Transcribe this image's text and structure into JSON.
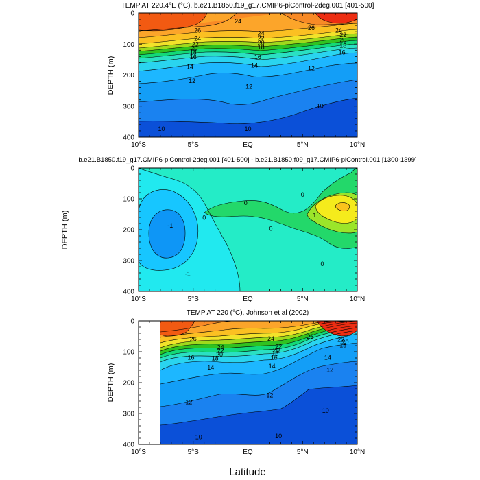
{
  "chart_data": [
    {
      "type": "contour",
      "title": "TEMP AT 220.4°E (°C), b.e21.B1850.f19_g17.CMIP6-piControl-2deg.001 [401-500]",
      "ylabel": "DEPTH (m)",
      "xlabel": "",
      "xlim": [
        -10,
        10
      ],
      "ylim": [
        400,
        0
      ],
      "xticks": [
        -10,
        -5,
        0,
        5,
        10
      ],
      "xtick_labels": [
        "10°S",
        "5°S",
        "EQ",
        "5°N",
        "10°N"
      ],
      "yticks": [
        0,
        100,
        200,
        300,
        400
      ],
      "ytick_labels": [
        "0",
        "100",
        "200",
        "300",
        "400"
      ],
      "contour_labels": [
        {
          "text": "26",
          "x": -4.6,
          "y": 55
        },
        {
          "text": "24",
          "x": -4.6,
          "y": 82
        },
        {
          "text": "22",
          "x": -4.8,
          "y": 99
        },
        {
          "text": "20",
          "x": -4.9,
          "y": 113
        },
        {
          "text": "18",
          "x": -5.0,
          "y": 126
        },
        {
          "text": "16",
          "x": -5.0,
          "y": 140
        },
        {
          "text": "14",
          "x": -5.3,
          "y": 172
        },
        {
          "text": "12",
          "x": -5.1,
          "y": 218
        },
        {
          "text": "24",
          "x": -0.9,
          "y": 25
        },
        {
          "text": "24",
          "x": 1.2,
          "y": 64
        },
        {
          "text": "22",
          "x": 1.2,
          "y": 81
        },
        {
          "text": "20",
          "x": 1.2,
          "y": 95
        },
        {
          "text": "18",
          "x": 1.2,
          "y": 109
        },
        {
          "text": "16",
          "x": 0.9,
          "y": 140
        },
        {
          "text": "14",
          "x": 0.6,
          "y": 168
        },
        {
          "text": "12",
          "x": 0.1,
          "y": 236
        },
        {
          "text": "26",
          "x": 5.8,
          "y": 48
        },
        {
          "text": "24",
          "x": 8.3,
          "y": 55
        },
        {
          "text": "22",
          "x": 8.7,
          "y": 70
        },
        {
          "text": "20",
          "x": 8.7,
          "y": 86
        },
        {
          "text": "18",
          "x": 8.7,
          "y": 104
        },
        {
          "text": "16",
          "x": 8.6,
          "y": 126
        },
        {
          "text": "12",
          "x": 5.8,
          "y": 177
        },
        {
          "text": "10",
          "x": 6.6,
          "y": 298
        },
        {
          "text": "10",
          "x": -7.9,
          "y": 372
        },
        {
          "text": "10",
          "x": 0.0,
          "y": 372
        }
      ]
    },
    {
      "type": "contour",
      "title": "b.e21.B1850.f19_g17.CMIP6-piControl-2deg.001 [401-500] - b.e21.B1850.f09_g17.CMIP6-piControl.001 [1300-1399]",
      "ylabel": "DEPTH (m)",
      "xlabel": "",
      "xlim": [
        -10,
        10
      ],
      "ylim": [
        400,
        0
      ],
      "xticks": [
        -10,
        -5,
        0,
        5,
        10
      ],
      "xtick_labels": [
        "10°S",
        "5°S",
        "EQ",
        "5°N",
        "10°N"
      ],
      "yticks": [
        0,
        100,
        200,
        300,
        400
      ],
      "ytick_labels": [
        "0",
        "100",
        "200",
        "300",
        "400"
      ],
      "contour_labels": [
        {
          "text": "-1",
          "x": -7.1,
          "y": 185
        },
        {
          "text": "0",
          "x": -4.0,
          "y": 160
        },
        {
          "text": "0",
          "x": -0.2,
          "y": 112
        },
        {
          "text": "0",
          "x": 2.1,
          "y": 195
        },
        {
          "text": "0",
          "x": 5.0,
          "y": 85
        },
        {
          "text": "0",
          "x": 6.8,
          "y": 310
        },
        {
          "text": "1",
          "x": 6.1,
          "y": 152
        },
        {
          "text": "-1",
          "x": -5.5,
          "y": 342
        }
      ]
    },
    {
      "type": "contour",
      "title": "TEMP AT 220 (°C), Johnson et al (2002)",
      "ylabel": "DEPTH (m)",
      "xlabel": "Latitude",
      "xlim": [
        -10,
        10
      ],
      "ylim": [
        400,
        0
      ],
      "xticks": [
        -10,
        -5,
        0,
        5,
        10
      ],
      "xtick_labels": [
        "10°S",
        "5°S",
        "EQ",
        "5°N",
        "10°N"
      ],
      "yticks": [
        0,
        100,
        200,
        300,
        400
      ],
      "ytick_labels": [
        "0",
        "100",
        "200",
        "300",
        "400"
      ],
      "contour_labels": [
        {
          "text": "26",
          "x": -5.0,
          "y": 58
        },
        {
          "text": "24",
          "x": -2.5,
          "y": 84
        },
        {
          "text": "22",
          "x": -2.5,
          "y": 96
        },
        {
          "text": "20",
          "x": -2.6,
          "y": 108
        },
        {
          "text": "18",
          "x": -3.0,
          "y": 120
        },
        {
          "text": "16",
          "x": -5.2,
          "y": 118
        },
        {
          "text": "14",
          "x": -3.4,
          "y": 150
        },
        {
          "text": "24",
          "x": 2.1,
          "y": 57
        },
        {
          "text": "22",
          "x": 2.8,
          "y": 82
        },
        {
          "text": "20",
          "x": 2.6,
          "y": 93
        },
        {
          "text": "18",
          "x": 2.5,
          "y": 104
        },
        {
          "text": "16",
          "x": 2.4,
          "y": 118
        },
        {
          "text": "14",
          "x": 2.2,
          "y": 145
        },
        {
          "text": "26",
          "x": 5.7,
          "y": 50
        },
        {
          "text": "22",
          "x": 8.5,
          "y": 60
        },
        {
          "text": "20",
          "x": 8.9,
          "y": 68
        },
        {
          "text": "18",
          "x": 8.7,
          "y": 78
        },
        {
          "text": "14",
          "x": 7.3,
          "y": 118
        },
        {
          "text": "12",
          "x": 7.5,
          "y": 158
        },
        {
          "text": "12",
          "x": -5.4,
          "y": 262
        },
        {
          "text": "12",
          "x": 2.0,
          "y": 240
        },
        {
          "text": "10",
          "x": 7.1,
          "y": 290
        },
        {
          "text": "10",
          "x": -4.5,
          "y": 375
        },
        {
          "text": "10",
          "x": 2.8,
          "y": 372
        }
      ]
    }
  ]
}
